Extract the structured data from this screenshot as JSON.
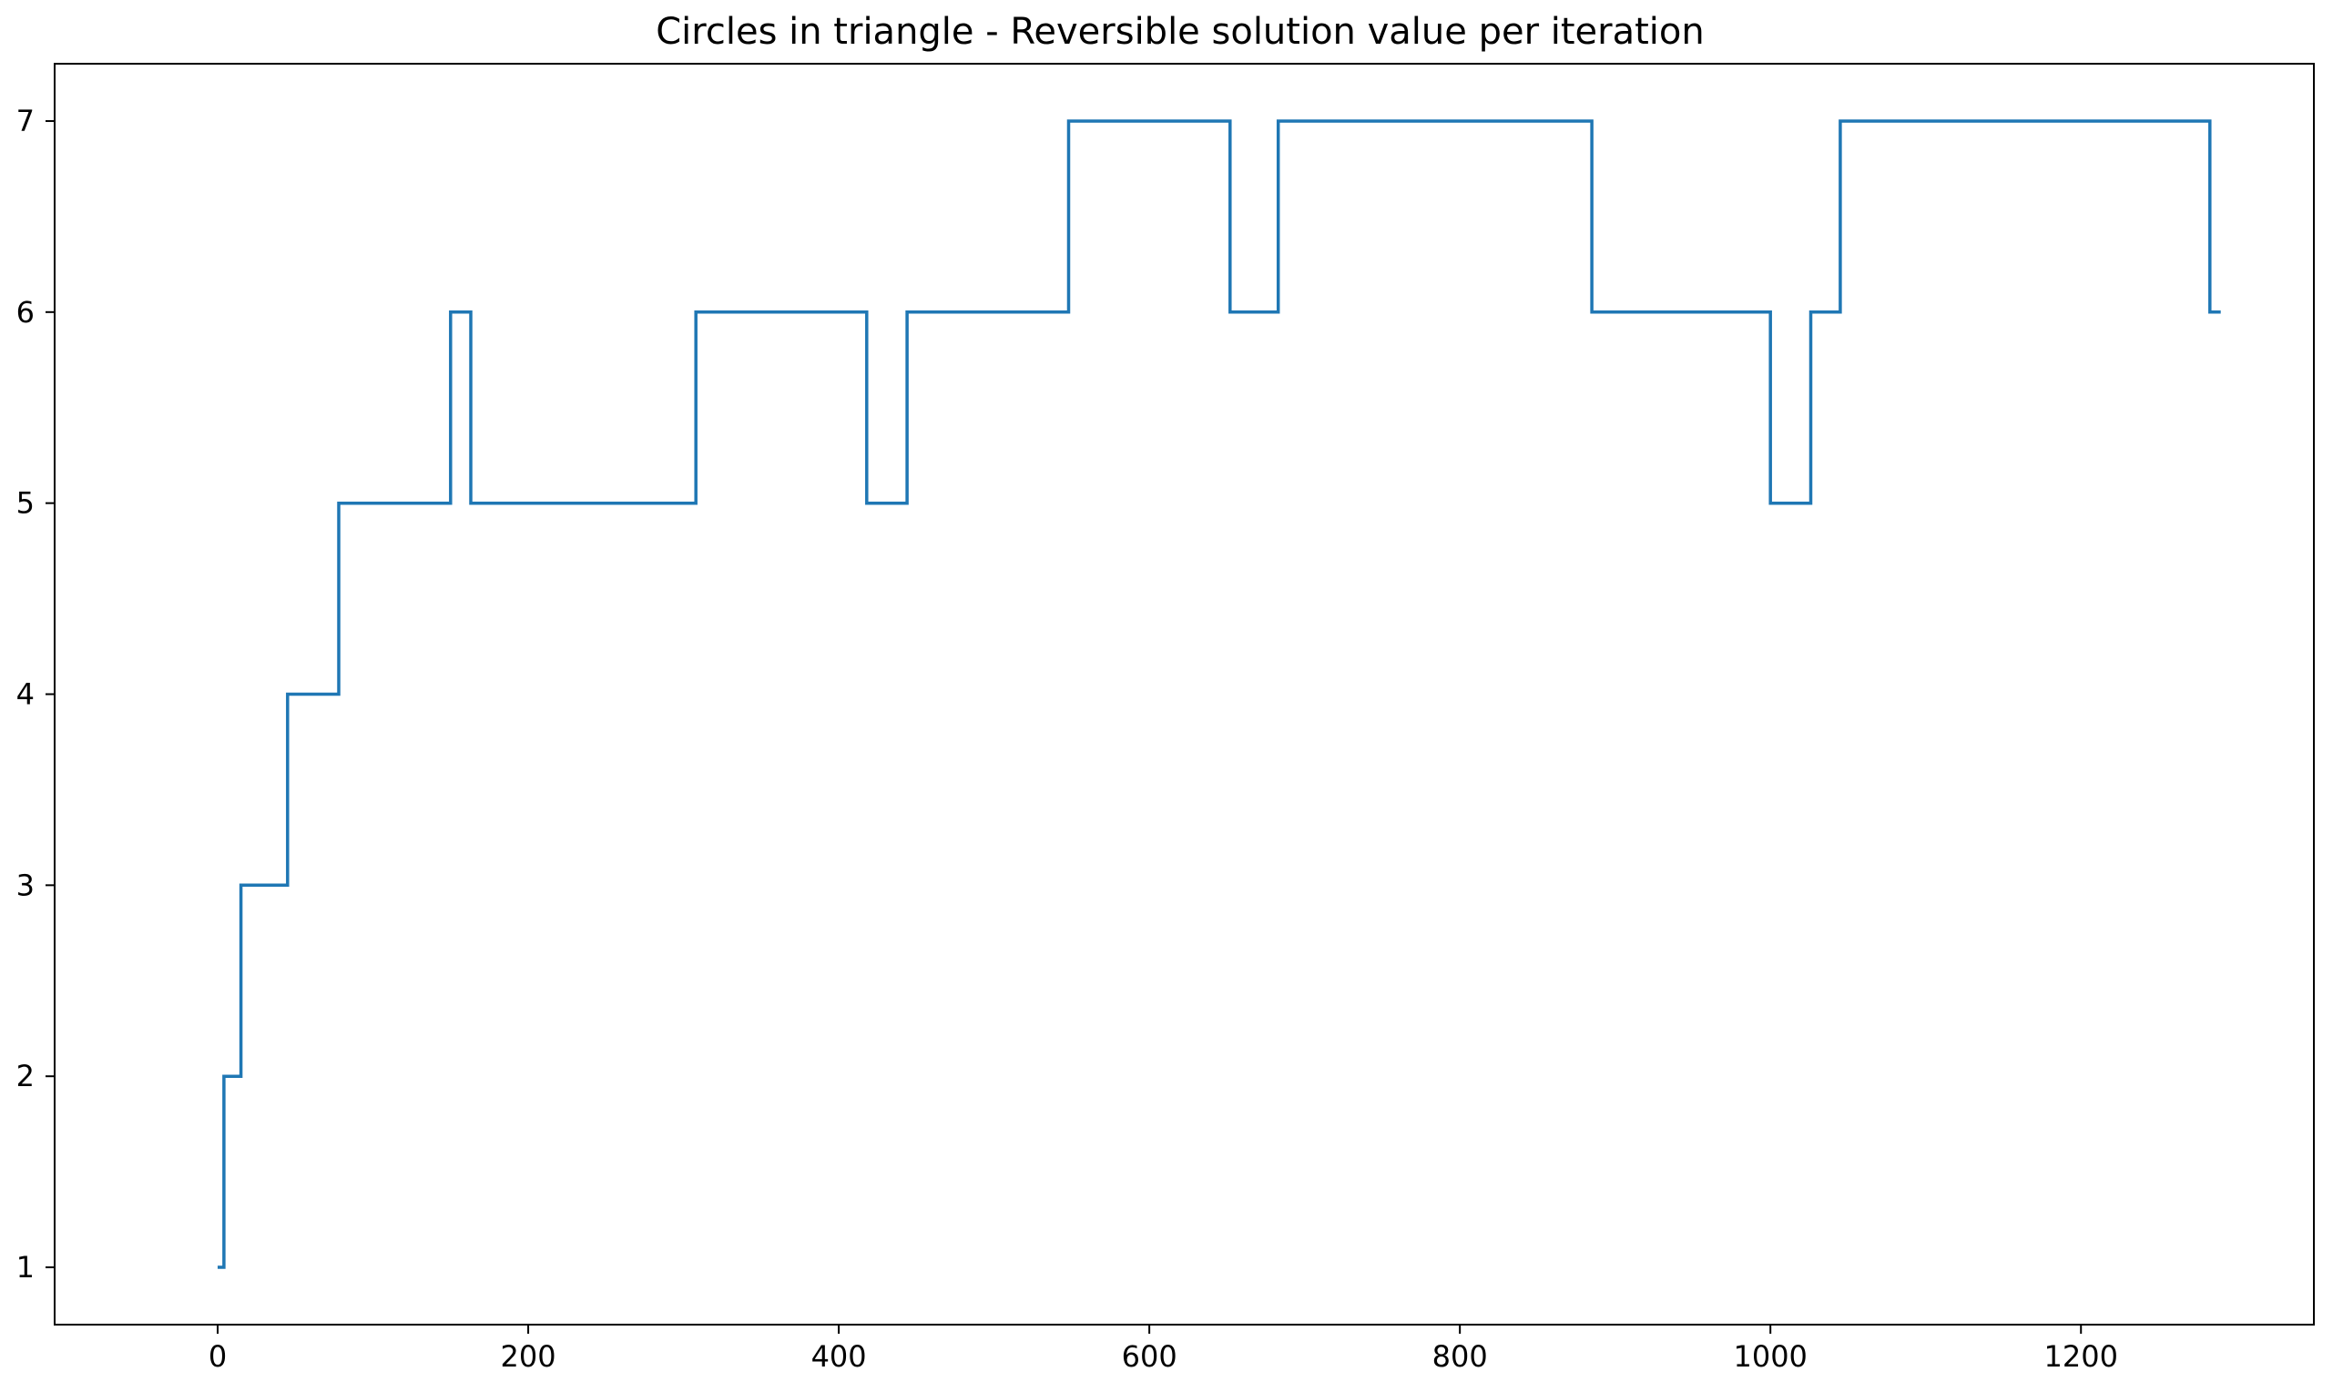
{
  "chart_data": {
    "type": "line",
    "title": "Circles in triangle - Reversible solution value per iteration",
    "xlabel": "",
    "ylabel": "",
    "xlim": [
      -105,
      1350
    ],
    "ylim": [
      0.7,
      7.3
    ],
    "xticks": [
      0,
      200,
      400,
      600,
      800,
      1000,
      1200
    ],
    "yticks": [
      1,
      2,
      3,
      4,
      5,
      6,
      7
    ],
    "xtick_labels": [
      "0",
      "200",
      "400",
      "600",
      "800",
      "1000",
      "1200"
    ],
    "ytick_labels": [
      "1",
      "2",
      "3",
      "4",
      "5",
      "6",
      "7"
    ],
    "grid": false,
    "legend": "none",
    "series": [
      {
        "color": "#1f77b4",
        "step": true,
        "x": [
          0,
          4,
          15,
          45,
          78,
          150,
          163,
          308,
          418,
          444,
          548,
          652,
          683,
          885,
          1000,
          1026,
          1045,
          1283,
          1290
        ],
        "values": [
          1,
          2,
          3,
          4,
          5,
          6,
          5,
          6,
          5,
          6,
          7,
          6,
          7,
          6,
          5,
          6,
          7,
          6,
          6
        ]
      }
    ]
  }
}
